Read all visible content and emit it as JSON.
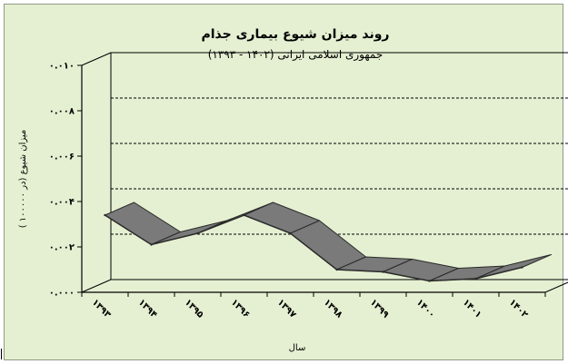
{
  "chart_data": {
    "type": "line",
    "title": "روند میزان شیوع بیماری جذام",
    "subtitle": "جمهوری اسلامی ایرانی (۱۴۰۲ - ۱۳۹۳)",
    "xlabel": "سال",
    "ylabel": "میزان شیوع (در ۱۰۰۰۰۰ )",
    "x": [
      1393,
      1394,
      1395,
      1396,
      1397,
      1398,
      1399,
      1400,
      1401,
      1402
    ],
    "x_tick_labels": [
      "۱۳۹۳",
      "۱۳۹۴",
      "۱۳۹۵",
      "۱۳۹۶",
      "۱۳۹۷",
      "۱۳۹۸",
      "۱۳۹۹",
      "۱۴۰۰",
      "۱۴۰۱",
      "۱۴۰۲"
    ],
    "y_tick_labels": [
      "۰.۰۰۰",
      "۰.۰۰۲",
      "۰.۰۰۴",
      "۰.۰۰۶",
      "۰.۰۰۸",
      "۰.۰۱۰"
    ],
    "y_ticks": [
      0,
      0.002,
      0.004,
      0.006,
      0.008,
      0.01
    ],
    "ylim": [
      0,
      0.01
    ],
    "series": [
      {
        "values": [
          0.0034,
          0.0021,
          0.0026,
          0.0034,
          0.0026,
          0.001,
          0.0009,
          0.0005,
          0.0006,
          0.0011
        ]
      }
    ],
    "grid": true,
    "style": "3d-ribbon"
  },
  "colors": {
    "background": "#e5f0d2",
    "ribbon_face": "#7a7a7a",
    "ribbon_edge": "#2b2b2b",
    "grid": "#000000",
    "axis": "#000000"
  }
}
